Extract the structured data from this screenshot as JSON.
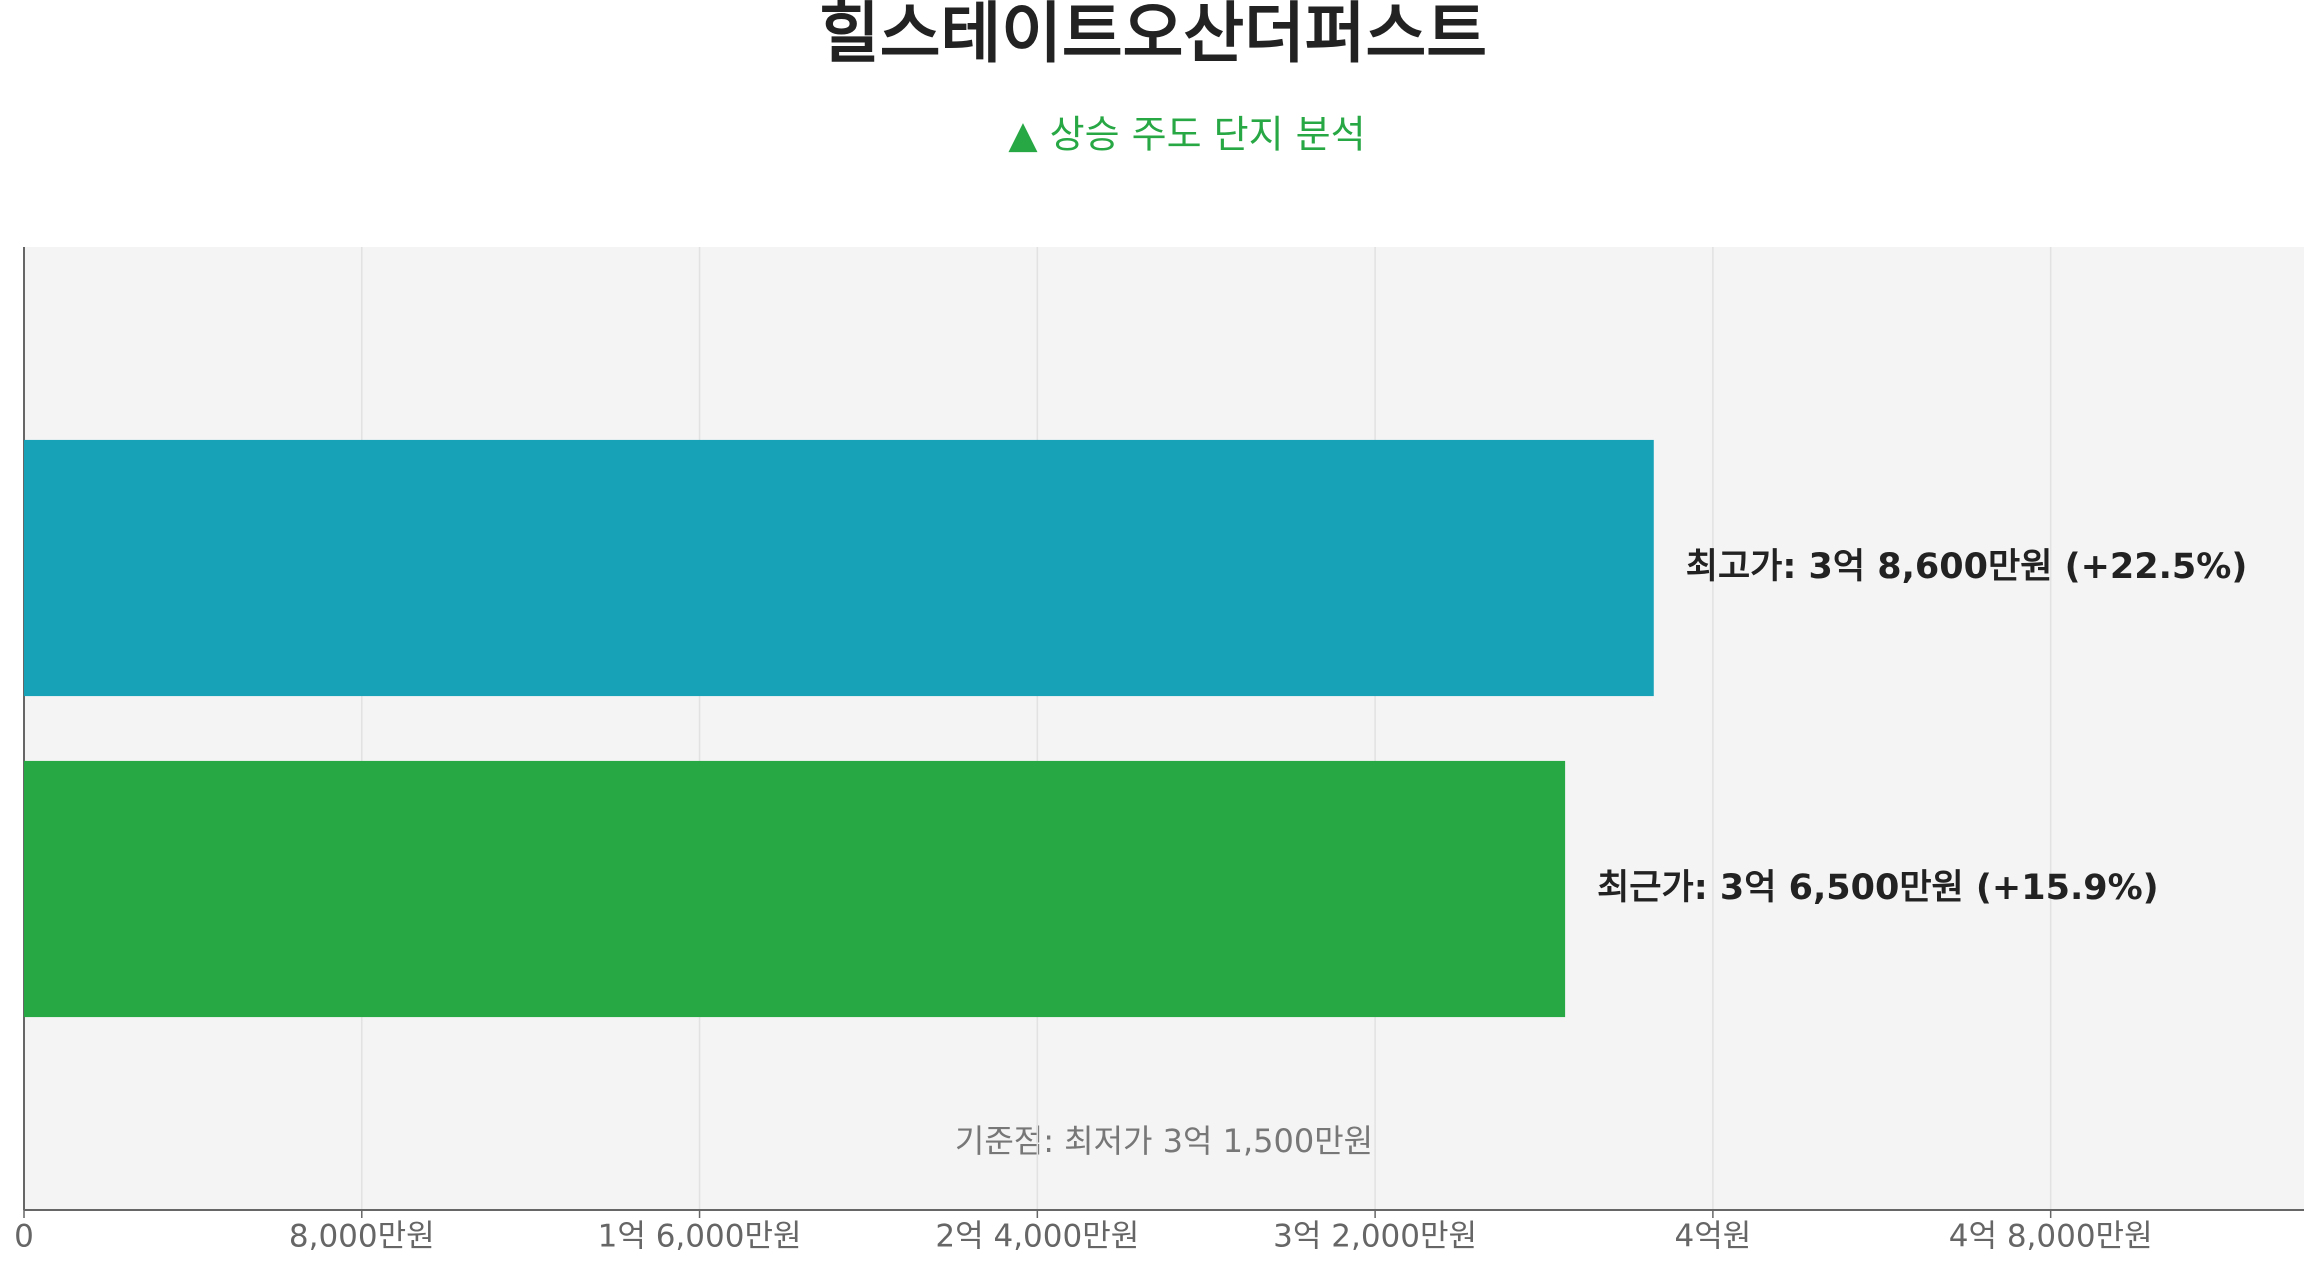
{
  "chart_data": {
    "type": "bar",
    "orientation": "horizontal",
    "title": "힐스테이트오산더퍼스트",
    "subtitle": "▲ 상승 주도 단지 분석",
    "annotation": "기준점: 최저가 3억 1,500만원",
    "categories": [
      null,
      null
    ],
    "values": [
      38600,
      36500
    ],
    "value_labels": [
      "최고가: 3억 8,600만원 (+22.5%)",
      "최근가: 3억 6,500만원 (+15.9%)"
    ],
    "colors": [
      "#18a2b8",
      "#28a745"
    ],
    "xlim": [
      0,
      54000
    ],
    "xticks": [
      0,
      {
        "value": 8000,
        "label": "8,000만원"
      },
      {
        "value": 16000,
        "label": "1억 6,000만원"
      },
      {
        "value": 24000,
        "label": "2억 4,000만원"
      },
      {
        "value": 32000,
        "label": "3억 2,000만원"
      },
      {
        "value": 40000,
        "label": "4억원"
      },
      {
        "value": 48000,
        "label": "4억 8,000만원"
      }
    ],
    "grid": true
  }
}
